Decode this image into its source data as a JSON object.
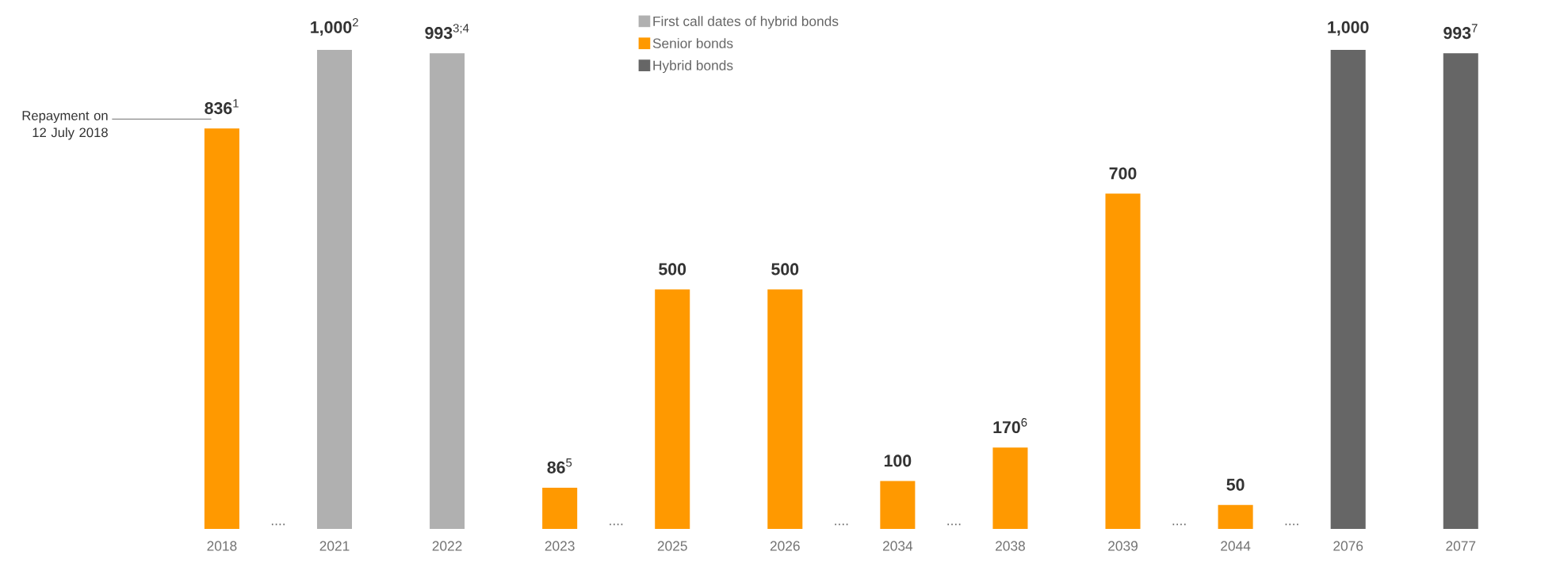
{
  "chart_data": {
    "type": "bar",
    "legend": "top",
    "categories": [
      "2018",
      "....",
      "2021",
      "2022",
      "2023",
      "....",
      "2025",
      "2026",
      "....",
      "2034",
      "....",
      "2038",
      "2039",
      "....",
      "2044",
      "....",
      "2076",
      "2077"
    ],
    "series": [
      {
        "name": "First call dates of hybrid bonds",
        "color": "#b0b0b0",
        "values": [
          null,
          null,
          1000,
          993,
          null,
          null,
          null,
          null,
          null,
          null,
          null,
          null,
          null,
          null,
          null,
          null,
          null,
          null
        ],
        "value_labels": [
          null,
          null,
          "**1,000**$^{2}$",
          "**993**$^{3;4}$",
          null,
          null,
          null,
          null,
          null,
          null,
          null,
          null,
          null,
          null,
          null,
          null,
          null,
          null
        ]
      },
      {
        "name": "Senior bonds",
        "color": "#ff9900",
        "values": [
          836,
          null,
          null,
          null,
          86,
          null,
          500,
          500,
          null,
          100,
          null,
          170,
          700,
          null,
          50,
          null,
          null,
          null
        ],
        "value_labels": [
          "**836**$^{1}$",
          null,
          null,
          null,
          "**86**$^{5}$",
          null,
          "**500**",
          "**500**",
          null,
          "**100**",
          null,
          "**170**$^{6}$",
          "**700**",
          null,
          "**50**",
          null,
          null,
          null
        ]
      },
      {
        "name": "Hybrid bonds",
        "color": "#666666",
        "values": [
          null,
          null,
          null,
          null,
          null,
          null,
          null,
          null,
          null,
          null,
          null,
          null,
          null,
          null,
          null,
          null,
          1000,
          993
        ],
        "value_labels": [
          null,
          null,
          null,
          null,
          null,
          null,
          null,
          null,
          null,
          null,
          null,
          null,
          null,
          null,
          null,
          null,
          "**1,000**",
          "**993**$^{7}$"
        ]
      }
    ],
    "annotations": [
      "Repayment on 12 July 2018"
    ]
  }
}
